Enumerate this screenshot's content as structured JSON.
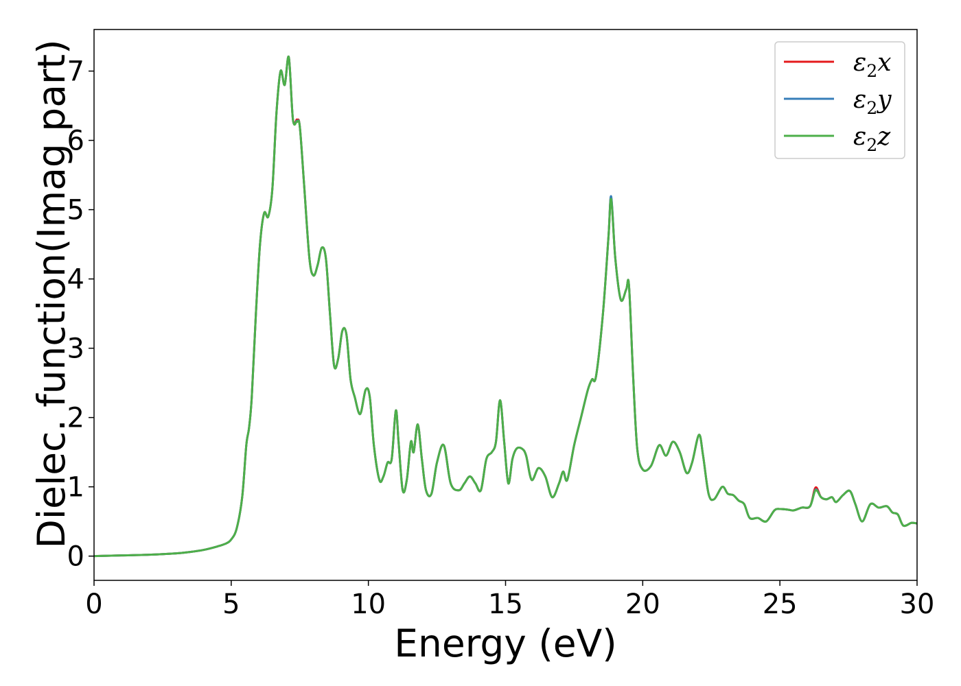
{
  "chart_data": {
    "type": "line",
    "title": "",
    "xlabel": "Energy (eV)",
    "ylabel": "Dielec. function(Imag part)",
    "xlim": [
      0,
      30
    ],
    "ylim": [
      -0.35,
      7.6
    ],
    "xticks": [
      0,
      5,
      10,
      15,
      20,
      25,
      30
    ],
    "xtick_labels": [
      "0",
      "5",
      "10",
      "15",
      "20",
      "25",
      "30"
    ],
    "yticks": [
      0,
      1,
      2,
      3,
      4,
      5,
      6,
      7
    ],
    "ytick_labels": [
      "0",
      "1",
      "2",
      "3",
      "4",
      "5",
      "6",
      "7"
    ],
    "grid": false,
    "legend_position": "top-right",
    "series": [
      {
        "name": "ε2x",
        "name_base": "ε",
        "name_sub": "2",
        "name_tail": "x",
        "color": "#e41a1c",
        "x": [
          0,
          1,
          2,
          3,
          3.5,
          4,
          4.5,
          4.8,
          5.0,
          5.2,
          5.4,
          5.55,
          5.65,
          5.75,
          5.9,
          6.05,
          6.2,
          6.35,
          6.5,
          6.65,
          6.8,
          6.95,
          7.1,
          7.25,
          7.4,
          7.5,
          7.65,
          7.85,
          8.0,
          8.15,
          8.3,
          8.45,
          8.6,
          8.75,
          8.9,
          9.05,
          9.2,
          9.35,
          9.5,
          9.7,
          9.9,
          10.05,
          10.2,
          10.4,
          10.55,
          10.7,
          10.85,
          11.0,
          11.1,
          11.25,
          11.4,
          11.55,
          11.65,
          11.8,
          11.95,
          12.1,
          12.3,
          12.5,
          12.75,
          13.0,
          13.3,
          13.5,
          13.7,
          13.9,
          14.1,
          14.3,
          14.5,
          14.65,
          14.8,
          14.95,
          15.1,
          15.25,
          15.4,
          15.6,
          15.75,
          15.95,
          16.2,
          16.45,
          16.7,
          16.95,
          17.1,
          17.25,
          17.5,
          17.75,
          18.0,
          18.15,
          18.3,
          18.55,
          18.75,
          18.85,
          19.0,
          19.2,
          19.4,
          19.5,
          19.65,
          19.8,
          20.0,
          20.3,
          20.6,
          20.85,
          21.1,
          21.35,
          21.6,
          21.8,
          22.05,
          22.2,
          22.4,
          22.6,
          22.9,
          23.1,
          23.3,
          23.5,
          23.7,
          23.9,
          24.2,
          24.5,
          24.8,
          25.0,
          25.3,
          25.5,
          25.8,
          26.1,
          26.3,
          26.5,
          26.7,
          26.9,
          27.05,
          27.3,
          27.55,
          27.75,
          28.0,
          28.3,
          28.6,
          28.9,
          29.1,
          29.3,
          29.5,
          29.8,
          30.0
        ],
        "y": [
          0.0,
          0.01,
          0.02,
          0.04,
          0.06,
          0.09,
          0.14,
          0.18,
          0.24,
          0.4,
          0.85,
          1.6,
          1.85,
          2.3,
          3.5,
          4.5,
          4.95,
          4.9,
          5.3,
          6.4,
          7.0,
          6.8,
          7.2,
          6.3,
          6.3,
          6.2,
          5.4,
          4.3,
          4.05,
          4.2,
          4.45,
          4.3,
          3.5,
          2.75,
          2.85,
          3.25,
          3.2,
          2.55,
          2.3,
          2.05,
          2.4,
          2.3,
          1.6,
          1.1,
          1.15,
          1.35,
          1.4,
          2.1,
          1.65,
          0.95,
          1.1,
          1.65,
          1.5,
          1.9,
          1.4,
          0.95,
          0.9,
          1.35,
          1.6,
          1.05,
          0.95,
          1.05,
          1.15,
          1.05,
          0.95,
          1.4,
          1.5,
          1.65,
          2.25,
          1.65,
          1.05,
          1.4,
          1.55,
          1.55,
          1.45,
          1.1,
          1.27,
          1.15,
          0.85,
          1.05,
          1.22,
          1.1,
          1.6,
          2.0,
          2.4,
          2.55,
          2.6,
          3.5,
          4.6,
          5.17,
          4.3,
          3.7,
          3.85,
          3.9,
          2.6,
          1.55,
          1.25,
          1.3,
          1.6,
          1.45,
          1.65,
          1.5,
          1.2,
          1.35,
          1.75,
          1.45,
          0.9,
          0.82,
          1.0,
          0.9,
          0.88,
          0.8,
          0.75,
          0.55,
          0.55,
          0.5,
          0.66,
          0.68,
          0.67,
          0.66,
          0.7,
          0.72,
          0.99,
          0.85,
          0.82,
          0.85,
          0.78,
          0.88,
          0.94,
          0.75,
          0.5,
          0.75,
          0.7,
          0.72,
          0.63,
          0.6,
          0.44,
          0.48,
          0.47
        ]
      },
      {
        "name": "ε2y",
        "name_base": "ε",
        "name_sub": "2",
        "name_tail": "y",
        "color": "#377eb8",
        "x": [
          0,
          1,
          2,
          3,
          3.5,
          4,
          4.5,
          4.8,
          5.0,
          5.2,
          5.4,
          5.55,
          5.65,
          5.75,
          5.9,
          6.05,
          6.2,
          6.35,
          6.5,
          6.65,
          6.8,
          6.95,
          7.1,
          7.25,
          7.4,
          7.5,
          7.65,
          7.85,
          8.0,
          8.15,
          8.3,
          8.45,
          8.6,
          8.75,
          8.9,
          9.05,
          9.2,
          9.35,
          9.5,
          9.7,
          9.9,
          10.05,
          10.2,
          10.4,
          10.55,
          10.7,
          10.85,
          11.0,
          11.1,
          11.25,
          11.4,
          11.55,
          11.65,
          11.8,
          11.95,
          12.1,
          12.3,
          12.5,
          12.75,
          13.0,
          13.3,
          13.5,
          13.7,
          13.9,
          14.1,
          14.3,
          14.5,
          14.65,
          14.8,
          14.95,
          15.1,
          15.25,
          15.4,
          15.6,
          15.75,
          15.95,
          16.2,
          16.45,
          16.7,
          16.95,
          17.1,
          17.25,
          17.5,
          17.75,
          18.0,
          18.15,
          18.3,
          18.55,
          18.75,
          18.85,
          19.0,
          19.2,
          19.4,
          19.5,
          19.65,
          19.8,
          20.0,
          20.3,
          20.6,
          20.85,
          21.1,
          21.35,
          21.6,
          21.8,
          22.05,
          22.2,
          22.4,
          22.6,
          22.9,
          23.1,
          23.3,
          23.5,
          23.7,
          23.9,
          24.2,
          24.5,
          24.8,
          25.0,
          25.3,
          25.5,
          25.8,
          26.1,
          26.3,
          26.5,
          26.7,
          26.9,
          27.05,
          27.3,
          27.55,
          27.75,
          28.0,
          28.3,
          28.6,
          28.9,
          29.1,
          29.3,
          29.5,
          29.8,
          30.0
        ],
        "y": [
          0.0,
          0.01,
          0.02,
          0.04,
          0.06,
          0.09,
          0.14,
          0.18,
          0.24,
          0.4,
          0.85,
          1.6,
          1.85,
          2.3,
          3.5,
          4.5,
          4.95,
          4.9,
          5.3,
          6.4,
          7.0,
          6.8,
          7.2,
          6.3,
          6.28,
          6.2,
          5.4,
          4.3,
          4.05,
          4.2,
          4.45,
          4.3,
          3.5,
          2.75,
          2.85,
          3.25,
          3.2,
          2.55,
          2.3,
          2.05,
          2.4,
          2.3,
          1.6,
          1.1,
          1.15,
          1.35,
          1.4,
          2.1,
          1.65,
          0.95,
          1.1,
          1.65,
          1.5,
          1.9,
          1.4,
          0.95,
          0.9,
          1.35,
          1.6,
          1.05,
          0.95,
          1.05,
          1.15,
          1.05,
          0.95,
          1.4,
          1.5,
          1.65,
          2.25,
          1.65,
          1.05,
          1.4,
          1.55,
          1.55,
          1.45,
          1.1,
          1.27,
          1.15,
          0.85,
          1.05,
          1.22,
          1.1,
          1.6,
          2.0,
          2.4,
          2.55,
          2.6,
          3.5,
          4.6,
          5.19,
          4.3,
          3.7,
          3.85,
          3.9,
          2.6,
          1.55,
          1.25,
          1.3,
          1.6,
          1.45,
          1.65,
          1.5,
          1.2,
          1.35,
          1.75,
          1.45,
          0.9,
          0.82,
          1.0,
          0.9,
          0.88,
          0.8,
          0.75,
          0.55,
          0.55,
          0.5,
          0.66,
          0.68,
          0.67,
          0.66,
          0.7,
          0.72,
          0.96,
          0.85,
          0.82,
          0.85,
          0.78,
          0.88,
          0.94,
          0.75,
          0.5,
          0.75,
          0.7,
          0.72,
          0.63,
          0.6,
          0.44,
          0.48,
          0.47
        ]
      },
      {
        "name": "ε2z",
        "name_base": "ε",
        "name_sub": "2",
        "name_tail": "z",
        "color": "#4daf4a",
        "x": [
          0,
          1,
          2,
          3,
          3.5,
          4,
          4.5,
          4.8,
          5.0,
          5.2,
          5.4,
          5.55,
          5.65,
          5.75,
          5.9,
          6.05,
          6.2,
          6.35,
          6.5,
          6.65,
          6.8,
          6.95,
          7.1,
          7.25,
          7.4,
          7.5,
          7.65,
          7.85,
          8.0,
          8.15,
          8.3,
          8.45,
          8.6,
          8.75,
          8.9,
          9.05,
          9.2,
          9.35,
          9.5,
          9.7,
          9.9,
          10.05,
          10.2,
          10.4,
          10.55,
          10.7,
          10.85,
          11.0,
          11.1,
          11.25,
          11.4,
          11.55,
          11.65,
          11.8,
          11.95,
          12.1,
          12.3,
          12.5,
          12.75,
          13.0,
          13.3,
          13.5,
          13.7,
          13.9,
          14.1,
          14.3,
          14.5,
          14.65,
          14.8,
          14.95,
          15.1,
          15.25,
          15.4,
          15.6,
          15.75,
          15.95,
          16.2,
          16.45,
          16.7,
          16.95,
          17.1,
          17.25,
          17.5,
          17.75,
          18.0,
          18.15,
          18.3,
          18.55,
          18.75,
          18.85,
          19.0,
          19.2,
          19.4,
          19.5,
          19.65,
          19.8,
          20.0,
          20.3,
          20.6,
          20.85,
          21.1,
          21.35,
          21.6,
          21.8,
          22.05,
          22.2,
          22.4,
          22.6,
          22.9,
          23.1,
          23.3,
          23.5,
          23.7,
          23.9,
          24.2,
          24.5,
          24.8,
          25.0,
          25.3,
          25.5,
          25.8,
          26.1,
          26.3,
          26.5,
          26.7,
          26.9,
          27.05,
          27.3,
          27.55,
          27.75,
          28.0,
          28.3,
          28.6,
          28.9,
          29.1,
          29.3,
          29.5,
          29.8,
          30.0
        ],
        "y": [
          0.0,
          0.01,
          0.02,
          0.04,
          0.06,
          0.09,
          0.14,
          0.18,
          0.24,
          0.4,
          0.85,
          1.6,
          1.85,
          2.3,
          3.5,
          4.5,
          4.95,
          4.9,
          5.3,
          6.4,
          7.0,
          6.8,
          7.2,
          6.3,
          6.27,
          6.2,
          5.4,
          4.3,
          4.05,
          4.2,
          4.45,
          4.3,
          3.5,
          2.75,
          2.85,
          3.25,
          3.2,
          2.55,
          2.3,
          2.05,
          2.4,
          2.3,
          1.6,
          1.1,
          1.15,
          1.35,
          1.4,
          2.1,
          1.65,
          0.95,
          1.1,
          1.65,
          1.5,
          1.9,
          1.4,
          0.95,
          0.9,
          1.35,
          1.6,
          1.05,
          0.95,
          1.05,
          1.15,
          1.05,
          0.95,
          1.4,
          1.5,
          1.65,
          2.25,
          1.65,
          1.05,
          1.4,
          1.55,
          1.55,
          1.45,
          1.1,
          1.27,
          1.15,
          0.85,
          1.05,
          1.22,
          1.1,
          1.6,
          2.0,
          2.4,
          2.55,
          2.6,
          3.5,
          4.6,
          5.15,
          4.3,
          3.7,
          3.85,
          3.9,
          2.6,
          1.55,
          1.25,
          1.3,
          1.6,
          1.45,
          1.65,
          1.5,
          1.2,
          1.35,
          1.75,
          1.45,
          0.9,
          0.82,
          1.0,
          0.9,
          0.88,
          0.8,
          0.75,
          0.55,
          0.55,
          0.5,
          0.66,
          0.68,
          0.67,
          0.66,
          0.7,
          0.72,
          0.95,
          0.85,
          0.82,
          0.85,
          0.78,
          0.88,
          0.94,
          0.75,
          0.5,
          0.75,
          0.7,
          0.72,
          0.63,
          0.6,
          0.44,
          0.48,
          0.47
        ]
      }
    ]
  }
}
